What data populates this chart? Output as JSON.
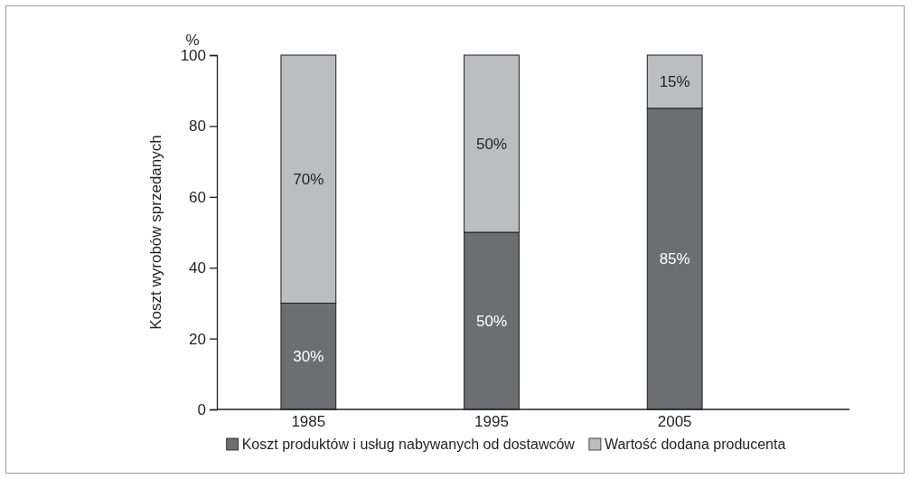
{
  "chart_data": {
    "type": "bar",
    "stacked": true,
    "ylabel": "Koszt wyrobów sprzedanych",
    "annotations": [
      "%"
    ],
    "categories": [
      "1985",
      "1995",
      "2005"
    ],
    "series": [
      {
        "name": "Koszt produktów i usług nabywanych od dostawców",
        "color": "#6d6e71",
        "values": [
          30,
          50,
          85
        ],
        "value_labels": [
          "30%",
          "50%",
          "85%"
        ]
      },
      {
        "name": "Wartość dodana producenta",
        "color": "#bcbdc0",
        "values": [
          70,
          50,
          15
        ],
        "value_labels": [
          "70%",
          "50%",
          "15%"
        ]
      }
    ],
    "ylim": [
      0,
      100
    ],
    "yticks": [
      0,
      20,
      40,
      60,
      80,
      100
    ],
    "grid": false,
    "legend": "bottom"
  }
}
